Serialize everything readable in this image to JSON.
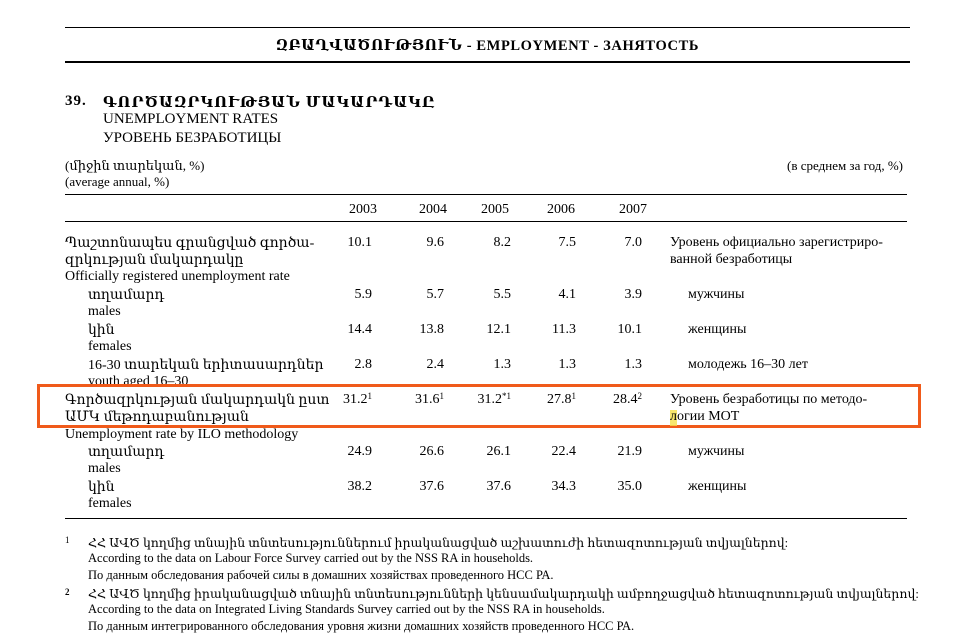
{
  "header": {
    "title": "ԶԲԱՂՎԱԾՈՒԹՅՈՒՆ  - EMPLOYMENT  -  ЗАНЯТОСТЬ"
  },
  "table_title": {
    "number": "39.",
    "arm": "ԳՈՐԾԱԶՐԿՈՒԹՅԱՆ ՄԱԿԱՐԴԱԿԸ",
    "en": "UNEMPLOYMENT RATES",
    "ru": "УРОВЕНЬ БЕЗРАБОТИЦЫ"
  },
  "units": {
    "arm": "(միջին տարեկան, %)",
    "en": "(average annual, %)",
    "ru": "(в среднем за год, %)"
  },
  "years": [
    "2003",
    "2004",
    "2005",
    "2006",
    "2007"
  ],
  "rows": [
    {
      "label_arm": "Պաշտոնապես գրանցված գործա-",
      "label_arm2": "զրկության մակարդակը",
      "values": [
        "10.1",
        "9.6",
        "8.2",
        "7.5",
        "7.0"
      ],
      "ru": "Уровень официально зарегистриро-",
      "ru2": "ванной безработицы"
    },
    {
      "label_en": "Officially registered unemployment rate"
    },
    {
      "label_arm": "տղամարդ",
      "label_en": "males",
      "values": [
        "5.9",
        "5.7",
        "5.5",
        "4.1",
        "3.9"
      ],
      "ru": "мужчины"
    },
    {
      "label_arm": "կին",
      "label_en": "females",
      "values": [
        "14.4",
        "13.8",
        "12.1",
        "11.3",
        "10.1"
      ],
      "ru": "женщины"
    },
    {
      "label_arm": "16-30 տարեկան երիտասարդներ",
      "label_en": "youth aged 16–30",
      "values": [
        "2.8",
        "2.4",
        "1.3",
        "1.3",
        "1.3"
      ],
      "ru": "молодежь 16–30 лет"
    },
    {
      "label_arm": "Գործազրկության մակարդակն ըստ",
      "label_arm2": "ԱՄԿ մեթոդաբանության",
      "values": [
        "31.2",
        "31.6",
        "31.2",
        "27.8",
        "28.4"
      ],
      "sups": [
        "1",
        "1",
        "*1",
        "1",
        "2"
      ],
      "ru": "Уровень безработицы по методо-",
      "ru2": "логии МОТ"
    },
    {
      "label_en": "Unemployment rate by ILO methodology"
    },
    {
      "label_arm": "տղամարդ",
      "label_en": "males",
      "values": [
        "24.9",
        "26.6",
        "26.1",
        "22.4",
        "21.9"
      ],
      "ru": "мужчины"
    },
    {
      "label_arm": "կին",
      "label_en": "females",
      "values": [
        "38.2",
        "37.6",
        "37.6",
        "34.3",
        "35.0"
      ],
      "ru": "женщины"
    }
  ],
  "footnotes": [
    {
      "mark": "1",
      "arm": "ՀՀ ԱՎԾ կողմից տնային տնտեսություններում իրականացված աշխատուժի  հետազոտության տվյալներով:",
      "en": "According to the data on Labour Force Survey carried out by the NSS RA in households.",
      "ru": "По данным обследования рабочей силы  в домашних хозяйствах проведенного НСС РА."
    },
    {
      "mark": "2",
      "arm": "ՀՀ ԱՎԾ կողմից իրականացված տնային տնտեսությունների կենսամակարդակի ամբողջացված հետազոտության տվյալներով:",
      "en": "According to the data on Integrated Living Standards  Survey carried out by the NSS RA in households.",
      "ru": "По данным интегрированного  обследования уровня жизни  домашних хозяйств  проведенного  НСС РА."
    }
  ],
  "colors": {
    "highlight_box": "#f05a1a",
    "text_marker": "#f5e04a"
  }
}
